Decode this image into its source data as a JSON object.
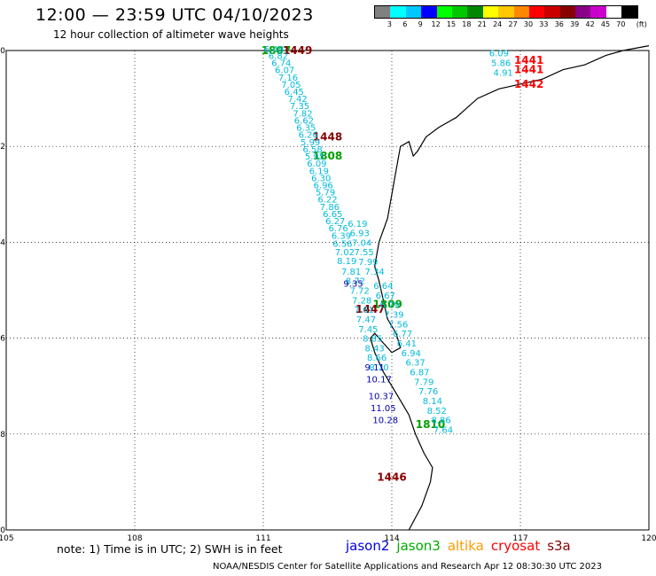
{
  "header": {
    "title": "12:00 — 23:59 UTC 04/10/2023",
    "subtitle": "12 hour collection of altimeter wave heights"
  },
  "legend": {
    "unit": "(ft)",
    "colors": [
      "#808080",
      "#00ffff",
      "#00c8ff",
      "#0000ff",
      "#00ff00",
      "#00c800",
      "#008800",
      "#ffff00",
      "#ffc800",
      "#ff8800",
      "#ff0000",
      "#c80000",
      "#880000",
      "#880088",
      "#cc00cc",
      "#ffffff",
      "#000000"
    ],
    "labels": [
      "3",
      "6",
      "9",
      "12",
      "15",
      "18",
      "21",
      "24",
      "27",
      "30",
      "33",
      "36",
      "39",
      "42",
      "45",
      "70"
    ]
  },
  "chart_data": {
    "type": "map",
    "xlim": [
      105,
      120
    ],
    "ylim": [
      -30,
      -20
    ],
    "x_ticks": [
      "105",
      "108",
      "111",
      "114",
      "117",
      "120"
    ],
    "y_ticks": [
      "-20",
      "-22",
      "-24",
      "-26",
      "-28",
      "-30"
    ],
    "grid": true,
    "coastline": [
      [
        114.4,
        -30.0
      ],
      [
        114.7,
        -29.5
      ],
      [
        114.9,
        -29.0
      ],
      [
        114.95,
        -28.7
      ],
      [
        114.75,
        -28.4
      ],
      [
        114.55,
        -28.0
      ],
      [
        114.4,
        -27.6
      ],
      [
        114.2,
        -27.3
      ],
      [
        114.0,
        -27.0
      ],
      [
        113.8,
        -26.7
      ],
      [
        113.6,
        -26.3
      ],
      [
        113.5,
        -26.0
      ],
      [
        113.6,
        -25.9
      ],
      [
        113.8,
        -26.1
      ],
      [
        114.0,
        -26.3
      ],
      [
        114.2,
        -26.2
      ],
      [
        114.1,
        -25.9
      ],
      [
        113.9,
        -25.6
      ],
      [
        113.8,
        -25.2
      ],
      [
        113.7,
        -24.8
      ],
      [
        113.6,
        -24.5
      ],
      [
        113.7,
        -24.0
      ],
      [
        113.9,
        -23.5
      ],
      [
        114.0,
        -23.0
      ],
      [
        114.1,
        -22.5
      ],
      [
        114.2,
        -22.0
      ],
      [
        114.4,
        -21.9
      ],
      [
        114.5,
        -22.2
      ],
      [
        114.6,
        -22.1
      ],
      [
        114.8,
        -21.8
      ],
      [
        115.1,
        -21.6
      ],
      [
        115.5,
        -21.4
      ],
      [
        116.0,
        -21.0
      ],
      [
        116.5,
        -20.8
      ],
      [
        117.0,
        -20.7
      ],
      [
        117.5,
        -20.6
      ],
      [
        118.0,
        -20.4
      ],
      [
        118.5,
        -20.3
      ],
      [
        119.0,
        -20.1
      ],
      [
        119.4,
        -20.0
      ],
      [
        120.0,
        -19.9
      ]
    ],
    "series": [
      {
        "name": "jason2",
        "color": "#0000c8",
        "points": []
      },
      {
        "name": "jason3",
        "color": "#00a000",
        "points": [
          {
            "x": 111.3,
            "y": -20.0,
            "v": "1807"
          },
          {
            "x": 112.5,
            "y": -22.2,
            "v": "1808"
          },
          {
            "x": 113.9,
            "y": -25.3,
            "v": "1809"
          },
          {
            "x": 114.9,
            "y": -27.8,
            "v": "1810"
          }
        ]
      },
      {
        "name": "altika",
        "color": "#ff9900",
        "points": []
      },
      {
        "name": "cryosat",
        "color": "#ff0000",
        "points": [
          {
            "x": 117.2,
            "y": -20.2,
            "v": "1441"
          },
          {
            "x": 117.2,
            "y": -20.4,
            "v": "1441"
          },
          {
            "x": 117.2,
            "y": -20.7,
            "v": "1442"
          }
        ]
      },
      {
        "name": "s3a",
        "color": "#880000",
        "points": [
          {
            "x": 111.8,
            "y": -20.0,
            "v": "1449"
          },
          {
            "x": 112.5,
            "y": -21.8,
            "v": "1448"
          },
          {
            "x": 113.5,
            "y": -25.4,
            "v": "1447"
          },
          {
            "x": 114.0,
            "y": -28.9,
            "v": "1446"
          }
        ]
      },
      {
        "name": "wave-track-west",
        "color": "#00bbdd",
        "points": [
          {
            "x": 111.25,
            "y": -19.96,
            "v": "6.48"
          },
          {
            "x": 111.35,
            "y": -20.1,
            "v": "6.82"
          },
          {
            "x": 111.42,
            "y": -20.25,
            "v": "6.74"
          },
          {
            "x": 111.5,
            "y": -20.4,
            "v": "6.07"
          },
          {
            "x": 111.58,
            "y": -20.55,
            "v": "7.16"
          },
          {
            "x": 111.65,
            "y": -20.7,
            "v": "7.05"
          },
          {
            "x": 111.72,
            "y": -20.85,
            "v": "6.45"
          },
          {
            "x": 111.8,
            "y": -21.0,
            "v": "7.42"
          },
          {
            "x": 111.85,
            "y": -21.15,
            "v": "7.35"
          },
          {
            "x": 111.92,
            "y": -21.3,
            "v": "7.82"
          },
          {
            "x": 111.95,
            "y": -21.45,
            "v": "6.62"
          },
          {
            "x": 112.0,
            "y": -21.6,
            "v": "6.35"
          },
          {
            "x": 112.05,
            "y": -21.75,
            "v": "6.26"
          },
          {
            "x": 112.1,
            "y": -21.9,
            "v": "5.99"
          },
          {
            "x": 112.15,
            "y": -22.05,
            "v": "6.58"
          },
          {
            "x": 112.2,
            "y": -22.2,
            "v": "5.95"
          },
          {
            "x": 112.25,
            "y": -22.35,
            "v": "6.09"
          },
          {
            "x": 112.3,
            "y": -22.5,
            "v": "6.19"
          },
          {
            "x": 112.35,
            "y": -22.65,
            "v": "6.30"
          },
          {
            "x": 112.4,
            "y": -22.8,
            "v": "6.96"
          },
          {
            "x": 112.45,
            "y": -22.95,
            "v": "5.79"
          },
          {
            "x": 112.5,
            "y": -23.1,
            "v": "6.22"
          },
          {
            "x": 112.55,
            "y": -23.25,
            "v": "7.86"
          },
          {
            "x": 112.62,
            "y": -23.4,
            "v": "6.65"
          },
          {
            "x": 112.68,
            "y": -23.55,
            "v": "6.27"
          },
          {
            "x": 112.75,
            "y": -23.7,
            "v": "6.76"
          },
          {
            "x": 112.82,
            "y": -23.85,
            "v": "6.39"
          },
          {
            "x": 112.85,
            "y": -24.02,
            "v": "6.56"
          },
          {
            "x": 112.9,
            "y": -24.2,
            "v": "7.02"
          },
          {
            "x": 112.95,
            "y": -24.38,
            "v": "8.19"
          },
          {
            "x": 113.05,
            "y": -24.6,
            "v": "7.81"
          },
          {
            "x": 113.15,
            "y": -24.8,
            "v": "8.72"
          },
          {
            "x": 113.25,
            "y": -25.0,
            "v": "7.72"
          },
          {
            "x": 113.3,
            "y": -25.2,
            "v": "7.28"
          },
          {
            "x": 113.35,
            "y": -25.4,
            "v": "7.61"
          },
          {
            "x": 113.4,
            "y": -25.6,
            "v": "7.47"
          },
          {
            "x": 113.45,
            "y": -25.8,
            "v": "7.45"
          },
          {
            "x": 113.55,
            "y": -26.0,
            "v": "8.85"
          },
          {
            "x": 113.6,
            "y": -26.2,
            "v": "8.43"
          },
          {
            "x": 113.65,
            "y": -26.4,
            "v": "8.66"
          },
          {
            "x": 113.7,
            "y": -26.6,
            "v": "8.70"
          }
        ]
      },
      {
        "name": "wave-track-east",
        "color": "#00bbdd",
        "points": [
          {
            "x": 113.2,
            "y": -23.6,
            "v": "6.19"
          },
          {
            "x": 113.25,
            "y": -23.8,
            "v": "6.93"
          },
          {
            "x": 113.3,
            "y": -24.0,
            "v": "7.04"
          },
          {
            "x": 113.35,
            "y": -24.2,
            "v": "7.55"
          },
          {
            "x": 113.45,
            "y": -24.4,
            "v": "7.99"
          },
          {
            "x": 113.6,
            "y": -24.6,
            "v": "7.34"
          },
          {
            "x": 113.8,
            "y": -24.9,
            "v": "6.64"
          },
          {
            "x": 113.85,
            "y": -25.1,
            "v": "6.67"
          },
          {
            "x": 113.95,
            "y": -25.3,
            "v": "6.79"
          },
          {
            "x": 114.05,
            "y": -25.5,
            "v": "7.39"
          },
          {
            "x": 114.15,
            "y": -25.7,
            "v": "7.56"
          },
          {
            "x": 114.25,
            "y": -25.9,
            "v": "6.77"
          },
          {
            "x": 114.35,
            "y": -26.1,
            "v": "6.41"
          },
          {
            "x": 114.45,
            "y": -26.3,
            "v": "6.94"
          },
          {
            "x": 114.55,
            "y": -26.5,
            "v": "6.37"
          },
          {
            "x": 114.65,
            "y": -26.7,
            "v": "6.87"
          },
          {
            "x": 114.75,
            "y": -26.9,
            "v": "7.79"
          },
          {
            "x": 114.85,
            "y": -27.1,
            "v": "7.76"
          },
          {
            "x": 114.95,
            "y": -27.3,
            "v": "8.14"
          },
          {
            "x": 115.05,
            "y": -27.5,
            "v": "8.52"
          },
          {
            "x": 115.15,
            "y": -27.7,
            "v": "8.86"
          },
          {
            "x": 115.2,
            "y": -27.9,
            "v": "7.64"
          }
        ]
      },
      {
        "name": "wave-track-deep",
        "color": "#0000aa",
        "points": [
          {
            "x": 113.1,
            "y": -24.85,
            "v": "9.35"
          },
          {
            "x": 113.6,
            "y": -26.6,
            "v": "9.11"
          },
          {
            "x": 113.7,
            "y": -26.85,
            "v": "10.17"
          },
          {
            "x": 113.75,
            "y": -27.2,
            "v": "10.37"
          },
          {
            "x": 113.8,
            "y": -27.45,
            "v": "11.05"
          },
          {
            "x": 113.85,
            "y": -27.7,
            "v": "10.28"
          }
        ]
      },
      {
        "name": "wave-track-north",
        "color": "#00bbdd",
        "points": [
          {
            "x": 116.5,
            "y": -20.05,
            "v": "6.09"
          },
          {
            "x": 116.55,
            "y": -20.25,
            "v": "5.86"
          },
          {
            "x": 116.6,
            "y": -20.45,
            "v": "4.91"
          }
        ]
      }
    ]
  },
  "footer": {
    "note": "note:  1) Time is in UTC;  2) SWH is in feet",
    "satellites": [
      {
        "name": "jason2",
        "color": "#0000dd"
      },
      {
        "name": "jason3",
        "color": "#00aa00"
      },
      {
        "name": "altika",
        "color": "#ff9900"
      },
      {
        "name": "cryosat",
        "color": "#ff0000"
      },
      {
        "name": "s3a",
        "color": "#880000"
      }
    ],
    "credit": "NOAA/NESDIS Center for Satellite Applications and Research     Apr 12 08:30:30 UTC 2023"
  }
}
